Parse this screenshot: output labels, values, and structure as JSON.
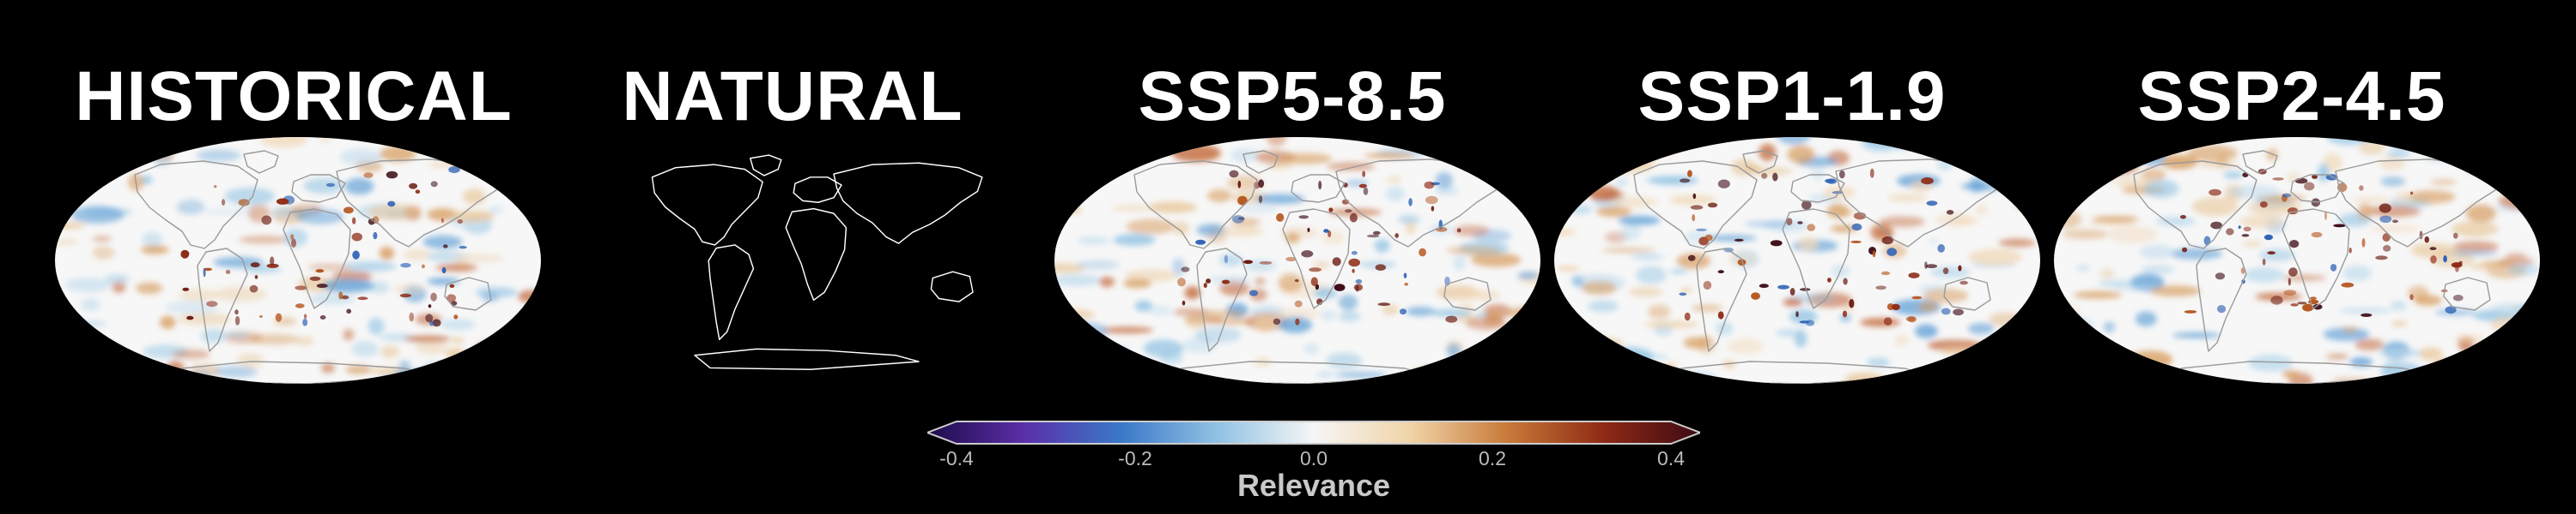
{
  "panels": [
    {
      "title": "HISTORICAL",
      "map_style": "heatmap",
      "seed": 11
    },
    {
      "title": "NATURAL",
      "map_style": "outline",
      "seed": 0
    },
    {
      "title": "SSP5-8.5",
      "map_style": "heatmap",
      "seed": 23
    },
    {
      "title": "SSP1-1.9",
      "map_style": "heatmap",
      "seed": 37
    },
    {
      "title": "SSP2-4.5",
      "map_style": "heatmap",
      "seed": 51
    }
  ],
  "colorbar": {
    "label": "Relevance",
    "min": -0.4,
    "max": 0.4,
    "ticks": [
      "-0.4",
      "-0.2",
      "0.0",
      "0.2",
      "0.4"
    ],
    "tick_values": [
      -0.4,
      -0.2,
      0.0,
      0.2,
      0.4
    ],
    "colors": [
      "#1d0c4a",
      "#5b2fa8",
      "#3a78c8",
      "#8fc2e3",
      "#f6f6f6",
      "#f0d4a8",
      "#c87a3a",
      "#8e2a15",
      "#3d0a14"
    ]
  },
  "colors": {
    "background": "#000000",
    "coastline_on_map": "#9a9a9a",
    "coastline_outline": "#ffffff"
  }
}
